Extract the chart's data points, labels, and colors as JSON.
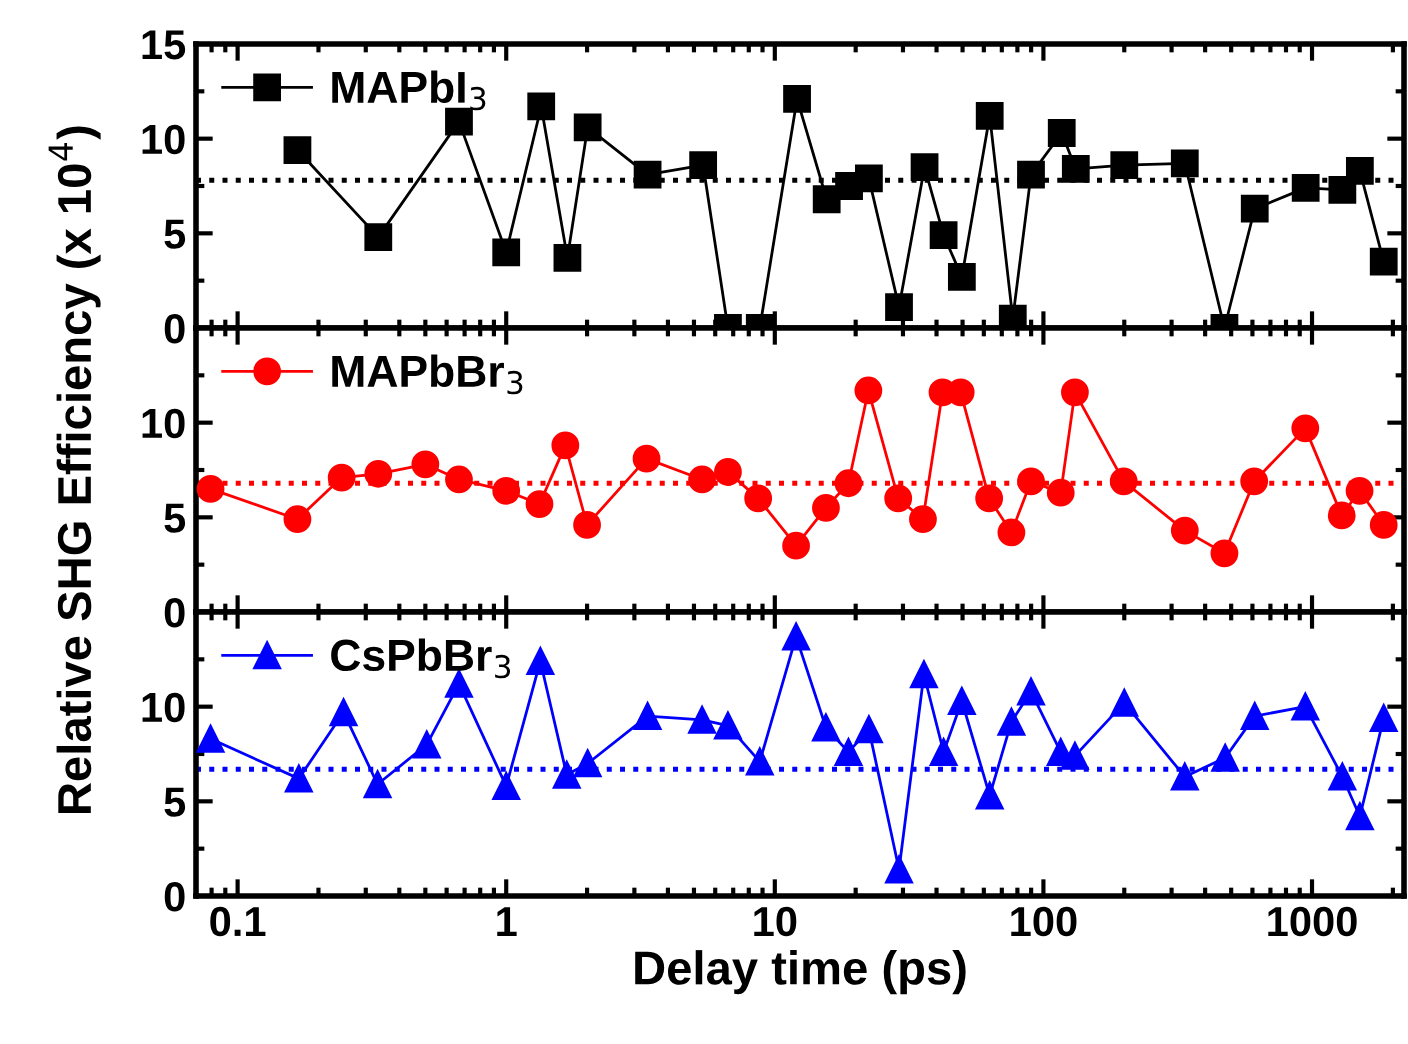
{
  "chart_data": [
    {
      "type": "line",
      "xlim": [
        0.07,
        2200
      ],
      "xticks": [
        0.1,
        1,
        10,
        100,
        1000
      ],
      "ylim": [
        0,
        15
      ],
      "yticks": [
        0,
        5,
        10,
        15
      ],
      "log": "x",
      "tick_labels": "y",
      "marker": "square",
      "legend": "top left",
      "grid": false,
      "series": [
        {
          "name": "MAPbI$_{3}$",
          "color": "#000000",
          "x": [
            0.167,
            0.334,
            0.667,
            1.0,
            1.35,
            1.69,
            2.01,
            3.36,
            5.41,
            6.69,
            8.79,
            12.1,
            15.6,
            18.9,
            22.4,
            29.0,
            36.1,
            42.5,
            49.7,
            63.1,
            76.9,
            89.9,
            117,
            132,
            200,
            336,
            472,
            612,
            947,
            1297,
            1507,
            1849
          ],
          "values": [
            9.4,
            4.8,
            10.9,
            4.0,
            11.7,
            3.7,
            10.6,
            8.1,
            8.6,
            0,
            0,
            12.1,
            6.8,
            7.5,
            7.9,
            1.1,
            8.5,
            4.9,
            2.7,
            11.2,
            0.5,
            8.1,
            10.3,
            8.4,
            8.6,
            8.7,
            0,
            6.3,
            7.4,
            7.3,
            8.3,
            3.5
          ]
        }
      ],
      "ref_lines": [
        {
          "axis": "y",
          "value": 7.8,
          "color": "#000000",
          "line_style": "dotted"
        }
      ]
    },
    {
      "type": "line",
      "xlim": [
        0.07,
        2200
      ],
      "xticks": [
        0.1,
        1,
        10,
        100,
        1000
      ],
      "ylim": [
        0,
        15
      ],
      "yticks": [
        0,
        5,
        10
      ],
      "log": "x",
      "tick_labels": "y",
      "marker": "circle",
      "legend": "top left",
      "grid": false,
      "ylabel": "Relative SHG Efficiency (x 10$^{4}$)",
      "series": [
        {
          "name": "MAPbBr$_{3}$",
          "color": "#ff0000",
          "x": [
            0.0793,
            0.167,
            0.244,
            0.334,
            0.5,
            0.667,
            1.0,
            1.33,
            1.66,
            2.0,
            3.33,
            5.36,
            6.69,
            8.67,
            12.0,
            15.5,
            18.8,
            22.3,
            28.8,
            35.6,
            42.1,
            49.2,
            62.8,
            76.0,
            89.9,
            116,
            131,
            199,
            336,
            472,
            609,
            944,
            1290,
            1503,
            1849
          ],
          "values": [
            6.5,
            4.9,
            7.1,
            7.3,
            7.8,
            7.0,
            6.4,
            5.7,
            8.8,
            4.6,
            8.1,
            7.0,
            7.4,
            6.0,
            3.5,
            5.5,
            6.8,
            11.7,
            6.0,
            4.9,
            11.6,
            11.6,
            6.0,
            4.2,
            6.9,
            6.3,
            11.6,
            6.9,
            4.3,
            3.1,
            6.9,
            9.7,
            5.1,
            6.4,
            4.6
          ]
        }
      ],
      "ref_lines": [
        {
          "axis": "y",
          "value": 6.8,
          "color": "#ff0000",
          "line_style": "dotted"
        }
      ]
    },
    {
      "type": "line",
      "xlim": [
        0.07,
        2200
      ],
      "xticks": [
        0.1,
        1,
        10,
        100,
        1000
      ],
      "ylim": [
        0,
        15
      ],
      "yticks": [
        0,
        5,
        10
      ],
      "log": "x",
      "marker": "triangle",
      "legend": "top left",
      "grid": false,
      "xlabel": "Delay time (ps)",
      "series": [
        {
          "name": "CsPbBr$_{3}$",
          "color": "#0000ff",
          "x": [
            0.0793,
            0.169,
            0.248,
            0.332,
            0.506,
            0.667,
            1.0,
            1.34,
            1.68,
            2.01,
            3.36,
            5.36,
            6.69,
            8.79,
            12.0,
            15.5,
            18.8,
            22.4,
            29.0,
            35.9,
            42.5,
            49.7,
            63.1,
            76.0,
            89.9,
            116,
            131,
            200,
            336,
            475,
            612,
            944,
            1297,
            1507,
            1849
          ],
          "values": [
            8.3,
            6.2,
            9.7,
            5.9,
            8.0,
            11.2,
            5.8,
            12.4,
            6.4,
            7.0,
            9.5,
            9.3,
            9.0,
            7.1,
            13.7,
            8.9,
            7.6,
            8.8,
            1.4,
            11.7,
            7.6,
            10.3,
            5.3,
            9.2,
            10.8,
            7.6,
            7.4,
            10.2,
            6.3,
            7.3,
            9.5,
            10.0,
            6.3,
            4.2,
            9.4
          ]
        }
      ],
      "ref_lines": [
        {
          "axis": "y",
          "value": 6.7,
          "color": "#0000ff",
          "line_style": "dotted"
        }
      ]
    }
  ]
}
